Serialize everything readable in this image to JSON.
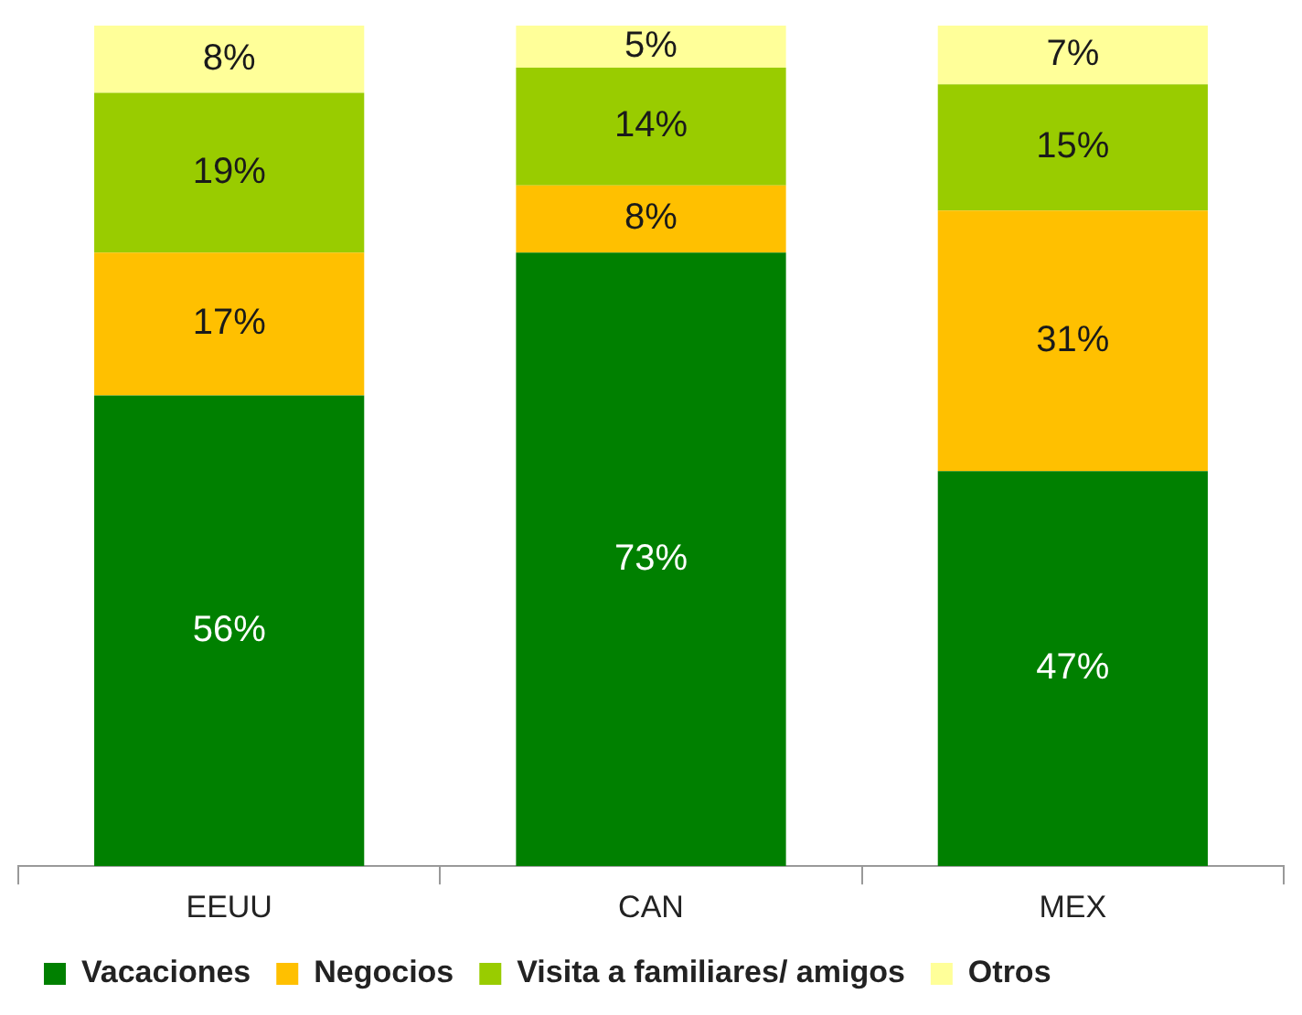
{
  "chart_data": {
    "type": "bar",
    "stacked": true,
    "categories": [
      "EEUU",
      "CAN",
      "MEX"
    ],
    "series": [
      {
        "name": "Vacaciones",
        "color": "#008000",
        "values": [
          56,
          73,
          47
        ],
        "value_labels": [
          "56%",
          "73%",
          "47%"
        ]
      },
      {
        "name": "Negocios",
        "color": "#ffc000",
        "values": [
          17,
          8,
          31
        ],
        "value_labels": [
          "17%",
          "8%",
          "31%"
        ]
      },
      {
        "name": "Visita a familiares/ amigos",
        "color": "#99cc00",
        "values": [
          19,
          14,
          15
        ],
        "value_labels": [
          "19%",
          "14%",
          "15%"
        ]
      },
      {
        "name": "Otros",
        "color": "#ffff99",
        "values": [
          8,
          5,
          7
        ],
        "value_labels": [
          "8%",
          "5%",
          "7%"
        ]
      }
    ],
    "legend": "bottom",
    "grid": false,
    "tick_labels": "x"
  }
}
